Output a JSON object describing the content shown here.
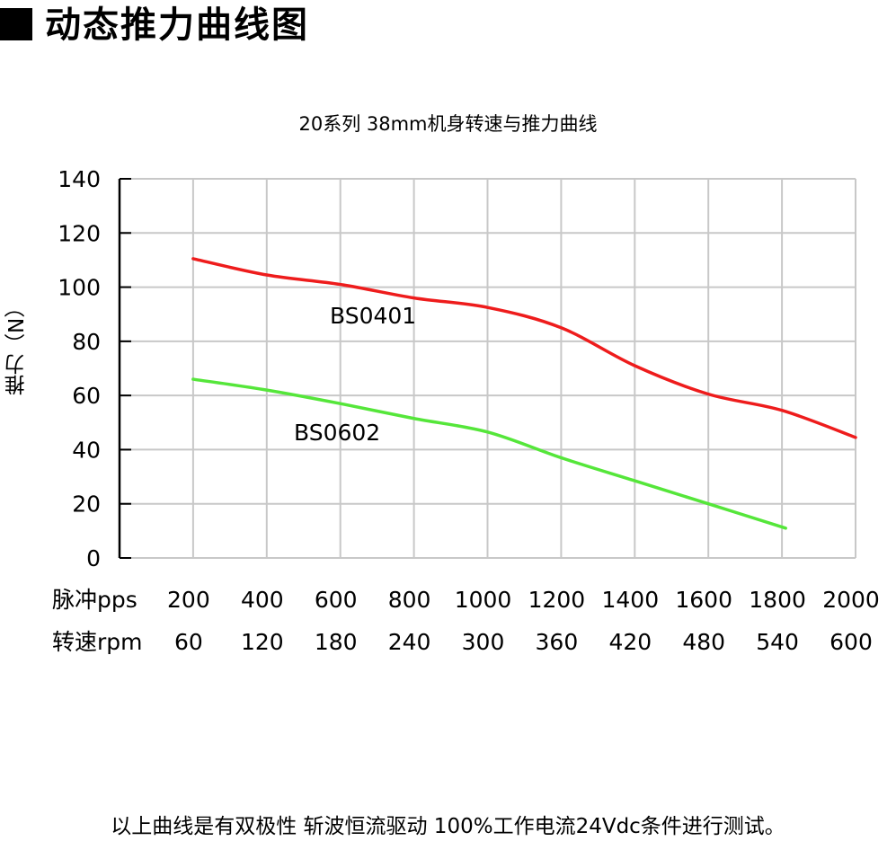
{
  "heading": "动态推力曲线图",
  "footnote": "以上曲线是有双极性 斩波恒流驱动 100%工作电流24Vdc条件进行测试。",
  "colors": {
    "series_1": "#ee1c1c",
    "series_2": "#55e63a",
    "grid": "#c8c8c8",
    "axis": "#000000"
  },
  "chart_data": {
    "type": "line",
    "title": "20系列 38mm机身转速与推力曲线",
    "ylabel": "推力（N）",
    "ylim": [
      0,
      140
    ],
    "yticks": [
      "0",
      "20",
      "40",
      "60",
      "80",
      "100",
      "120",
      "140"
    ],
    "xlim": [
      0,
      2000
    ],
    "grid": true,
    "x_rows": [
      {
        "label": "脉冲pps",
        "ticks": [
          "200",
          "400",
          "600",
          "800",
          "1000",
          "1200",
          "1400",
          "1600",
          "1800",
          "2000"
        ]
      },
      {
        "label": "转速rpm",
        "ticks": [
          "60",
          "120",
          "180",
          "240",
          "300",
          "360",
          "420",
          "480",
          "540",
          "600"
        ]
      }
    ],
    "series": [
      {
        "name": "BS0401",
        "x": [
          200,
          400,
          600,
          800,
          1000,
          1200,
          1400,
          1600,
          1800,
          2000
        ],
        "y": [
          110.5,
          104.5,
          101,
          96,
          92.5,
          85,
          71,
          60.5,
          54.5,
          44.5
        ]
      },
      {
        "name": "BS0602",
        "x": [
          200,
          400,
          600,
          800,
          1000,
          1200,
          1400,
          1600,
          1810
        ],
        "y": [
          66,
          62,
          57,
          51.5,
          46.5,
          37,
          28.5,
          20,
          11
        ]
      }
    ]
  }
}
